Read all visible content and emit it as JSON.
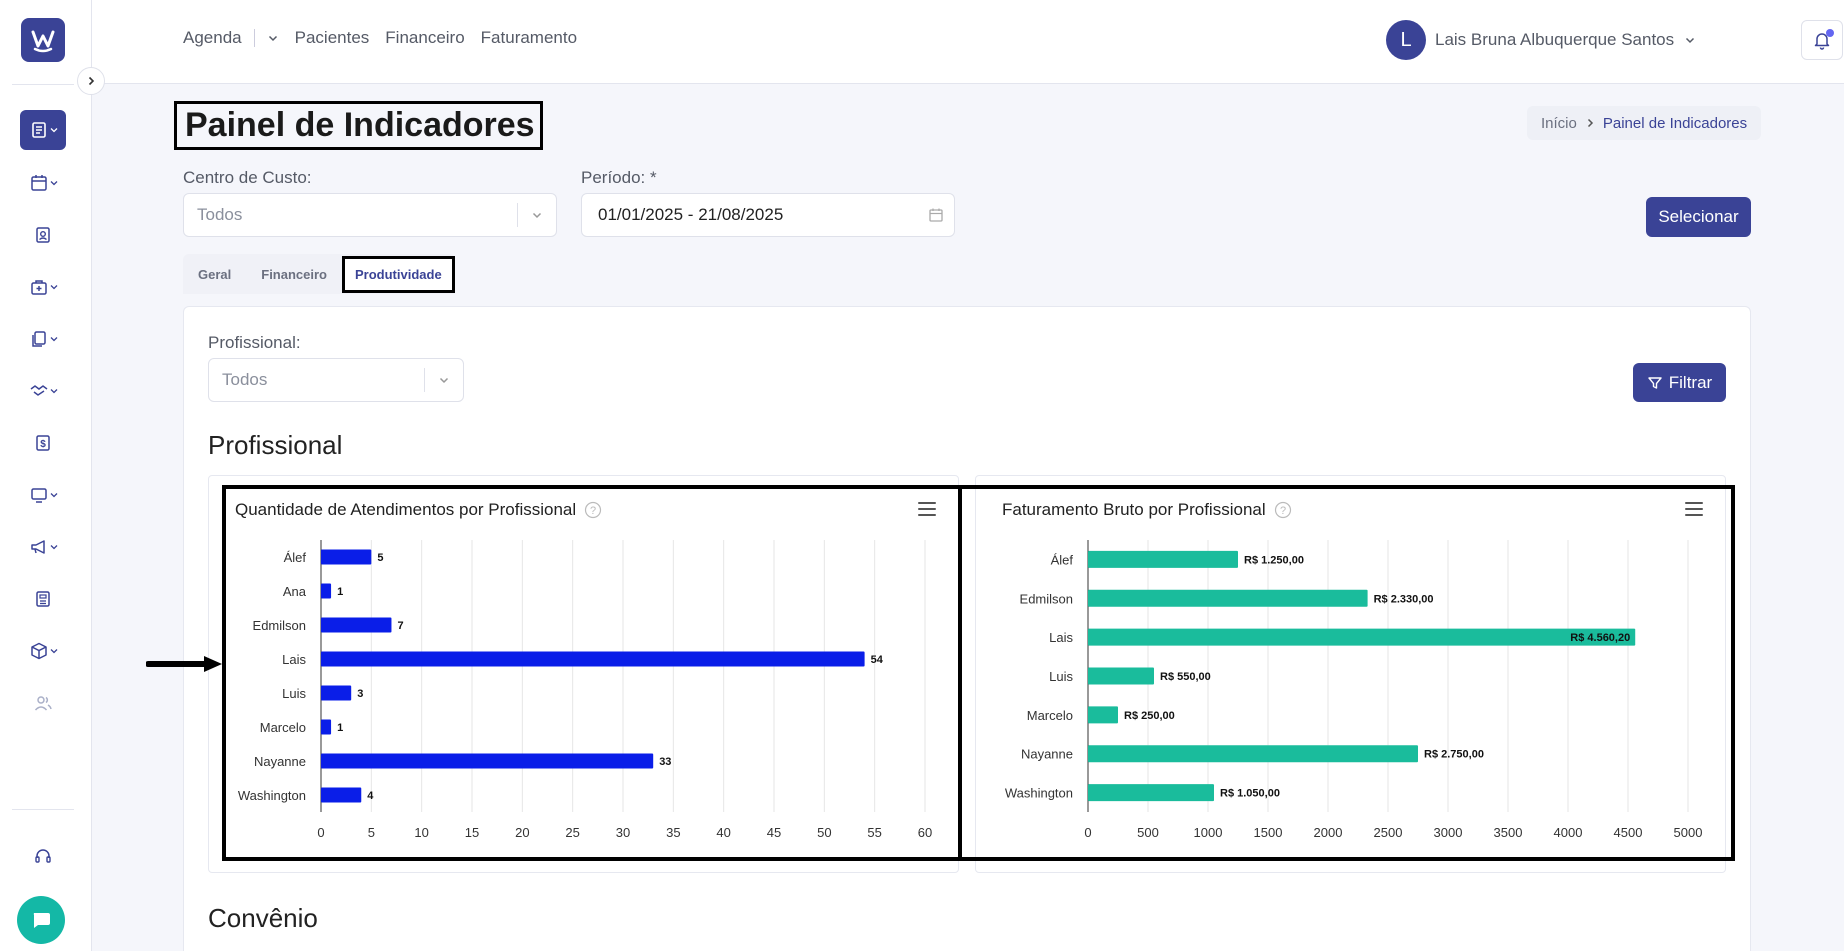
{
  "brand": {
    "logo_letter": "W",
    "accent": "#3a4396"
  },
  "nav": {
    "links": [
      "Agenda",
      "Pacientes",
      "Financeiro",
      "Faturamento"
    ]
  },
  "user": {
    "initial": "L",
    "name": "Lais Bruna Albuquerque Santos"
  },
  "page": {
    "title": "Painel de Indicadores",
    "breadcrumb": {
      "home": "Início",
      "current": "Painel de Indicadores"
    }
  },
  "filters": {
    "cost_center_label": "Centro de Custo:",
    "cost_center_value": "Todos",
    "period_label": "Período: *",
    "period_value": "01/01/2025 - 21/08/2025",
    "select_button": "Selecionar"
  },
  "tabs": [
    {
      "label": "Geral",
      "active": false
    },
    {
      "label": "Financeiro",
      "active": false
    },
    {
      "label": "Produtividade",
      "active": true
    }
  ],
  "professional_filter": {
    "label": "Profissional:",
    "value": "Todos",
    "button": "Filtrar"
  },
  "sections": {
    "professional": "Profissional",
    "insurance": "Convênio"
  },
  "chart_data": [
    {
      "type": "bar",
      "orientation": "horizontal",
      "title": "Quantidade de Atendimentos por Profissional",
      "categories": [
        "Álef",
        "Ana",
        "Edmilson",
        "Lais",
        "Luis",
        "Marcelo",
        "Nayanne",
        "Washington"
      ],
      "values": [
        5,
        1,
        7,
        54,
        3,
        1,
        33,
        4
      ],
      "data_labels": [
        "5",
        "1",
        "7",
        "54",
        "3",
        "1",
        "33",
        "4"
      ],
      "xlim": [
        0,
        60
      ],
      "xticks": [
        "0",
        "5",
        "10",
        "15",
        "20",
        "25",
        "30",
        "35",
        "40",
        "45",
        "50",
        "55",
        "60"
      ],
      "color": "#0a1ee8",
      "grid": true
    },
    {
      "type": "bar",
      "orientation": "horizontal",
      "title": "Faturamento Bruto por Profissional",
      "categories": [
        "Álef",
        "Edmilson",
        "Lais",
        "Luis",
        "Marcelo",
        "Nayanne",
        "Washington"
      ],
      "values": [
        1250.0,
        2330.0,
        4560.2,
        550.0,
        250.0,
        2750.0,
        1050.0
      ],
      "data_labels": [
        "R$ 1.250,00",
        "R$ 2.330,00",
        "R$ 4.560,20",
        "R$ 550,00",
        "R$ 250,00",
        "R$ 2.750,00",
        "R$ 1.050,00"
      ],
      "xlim": [
        0,
        5000
      ],
      "xticks": [
        "0",
        "500",
        "1000",
        "1500",
        "2000",
        "2500",
        "3000",
        "3500",
        "4000",
        "4500",
        "5000"
      ],
      "color": "#1abc9c",
      "grid": true
    }
  ]
}
